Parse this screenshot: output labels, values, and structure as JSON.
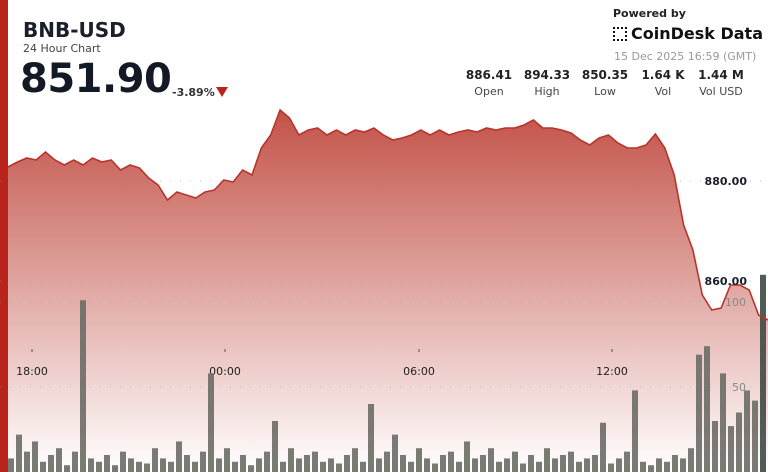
{
  "header": {
    "symbol": "BNB-USD",
    "subtitle": "24 Hour Chart",
    "price": "851.90",
    "change": "-3.89%",
    "change_direction": "down"
  },
  "branding": {
    "powered_by": "Powered by",
    "name": "CoinDesk Data",
    "timestamp": "15 Dec 2025 16:59 (GMT)"
  },
  "stats": [
    {
      "value": "886.41",
      "label": "Open"
    },
    {
      "value": "894.33",
      "label": "High"
    },
    {
      "value": "850.35",
      "label": "Low"
    },
    {
      "value": "1.64 K",
      "label": "Vol"
    },
    {
      "value": "1.44 M",
      "label": "Vol USD"
    }
  ],
  "colors": {
    "accent": "#b8231c",
    "line": "#b8342a",
    "fill_top": "#c0493f",
    "bar": "#6b6b66"
  },
  "chart_data": {
    "type": "area",
    "price_axis": {
      "ticks": [
        {
          "value": 880,
          "label": "880.00"
        },
        {
          "value": 860,
          "label": "860.00"
        }
      ]
    },
    "volume_axis": {
      "ticks": [
        {
          "value": 100,
          "label": "100"
        },
        {
          "value": 50,
          "label": "50"
        }
      ]
    },
    "x_ticks": [
      "18:00",
      "00:00",
      "06:00",
      "12:00"
    ],
    "price": [
      882.8,
      883.8,
      884.6,
      884.2,
      885.8,
      884.2,
      883.2,
      884.2,
      883.2,
      884.6,
      883.8,
      884.2,
      882.2,
      883.2,
      882.6,
      880.6,
      879.2,
      876.2,
      877.8,
      877.2,
      876.6,
      877.8,
      878.2,
      880.2,
      879.8,
      882.2,
      881.2,
      886.6,
      889.2,
      894.2,
      892.6,
      889.2,
      890.2,
      890.6,
      889.2,
      890.2,
      889.2,
      890.2,
      889.8,
      890.6,
      889.2,
      888.2,
      888.6,
      889.2,
      890.2,
      889.2,
      890.2,
      889.2,
      889.8,
      890.2,
      889.8,
      890.6,
      890.2,
      890.6,
      890.6,
      891.2,
      892.2,
      890.6,
      890.6,
      890.2,
      889.6,
      888.2,
      887.2,
      888.6,
      889.2,
      887.6,
      886.6,
      886.6,
      887.2,
      889.4,
      886.6,
      881.2,
      871.2,
      866.2,
      857.2,
      854.2,
      854.6,
      859.2,
      859.2,
      858.2,
      853.2,
      852.2
    ],
    "volume": [
      8,
      22,
      12,
      18,
      6,
      10,
      14,
      4,
      12,
      101,
      8,
      6,
      10,
      4,
      12,
      8,
      6,
      5,
      14,
      8,
      6,
      18,
      10,
      6,
      12,
      58,
      8,
      14,
      6,
      10,
      4,
      8,
      12,
      30,
      6,
      14,
      8,
      10,
      12,
      6,
      8,
      5,
      10,
      14,
      6,
      40,
      8,
      12,
      22,
      10,
      6,
      14,
      8,
      5,
      10,
      12,
      6,
      18,
      8,
      10,
      14,
      6,
      8,
      12,
      5,
      10,
      6,
      14,
      8,
      10,
      12,
      6,
      8,
      10,
      29,
      5,
      8,
      12,
      48,
      6,
      4,
      8,
      6,
      10,
      8,
      14,
      69,
      74,
      30,
      58,
      27,
      35,
      48,
      42,
      116,
      30
    ]
  }
}
